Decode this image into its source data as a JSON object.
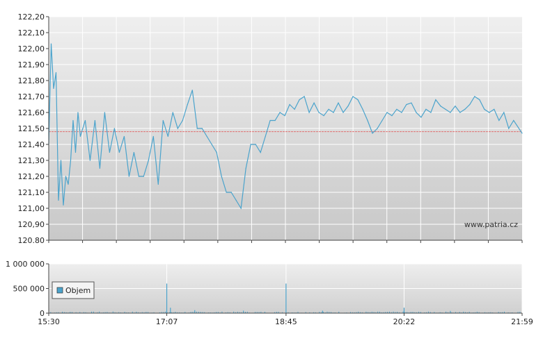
{
  "watermark": "www.patria.cz",
  "colors": {
    "line": "#4aa3cc",
    "reference": "#e07070",
    "volume": "#4aa3cc",
    "grid": "#ffffff",
    "bg_top": "#eeeeee",
    "bg_bottom": "#c9c9c9",
    "axis": "#444444"
  },
  "chart_data": [
    {
      "type": "line",
      "name": "price",
      "ylim": [
        120.8,
        122.2
      ],
      "yticks": [
        "122,20",
        "122,10",
        "122,00",
        "121,90",
        "121,80",
        "121,70",
        "121,60",
        "121,50",
        "121,40",
        "121,30",
        "121,20",
        "121,10",
        "121,00",
        "120,90",
        "120.80"
      ],
      "ytick_values": [
        122.2,
        122.1,
        122.0,
        121.9,
        121.8,
        121.7,
        121.6,
        121.5,
        121.4,
        121.3,
        121.2,
        121.1,
        121.0,
        120.9,
        120.8
      ],
      "x_minutes": [
        0,
        2,
        4,
        6,
        8,
        10,
        12,
        14,
        16,
        18,
        20,
        22,
        24,
        26,
        28,
        30,
        34,
        38,
        42,
        46,
        50,
        54,
        58,
        62,
        66,
        70,
        74,
        78,
        82,
        86,
        90,
        94,
        98,
        102,
        106,
        110,
        114,
        118,
        122,
        126,
        130,
        134,
        138,
        142,
        146,
        150,
        154,
        158,
        162,
        166,
        170,
        174,
        178,
        182,
        186,
        190,
        194,
        198,
        202,
        206,
        210,
        214,
        218,
        222,
        226,
        230,
        234,
        238,
        242,
        246,
        250,
        254,
        258,
        262,
        266,
        270,
        274,
        278,
        282,
        286,
        290,
        294,
        298,
        302,
        306,
        310,
        314,
        318,
        322,
        326,
        330,
        334,
        338,
        342,
        346,
        350,
        354,
        358,
        362,
        366,
        370,
        374,
        378,
        382,
        389
      ],
      "values": [
        121.4,
        122.03,
        121.75,
        121.85,
        121.05,
        121.3,
        121.02,
        121.2,
        121.15,
        121.3,
        121.55,
        121.35,
        121.6,
        121.45,
        121.5,
        121.55,
        121.3,
        121.55,
        121.25,
        121.6,
        121.35,
        121.5,
        121.35,
        121.45,
        121.2,
        121.35,
        121.2,
        121.2,
        121.3,
        121.45,
        121.15,
        121.55,
        121.45,
        121.6,
        121.5,
        121.55,
        121.65,
        121.74,
        121.5,
        121.5,
        121.45,
        121.4,
        121.35,
        121.2,
        121.1,
        121.1,
        121.05,
        121.0,
        121.25,
        121.4,
        121.4,
        121.35,
        121.45,
        121.55,
        121.55,
        121.6,
        121.58,
        121.65,
        121.62,
        121.68,
        121.7,
        121.6,
        121.66,
        121.6,
        121.58,
        121.62,
        121.6,
        121.66,
        121.6,
        121.64,
        121.7,
        121.68,
        121.62,
        121.55,
        121.47,
        121.5,
        121.55,
        121.6,
        121.58,
        121.62,
        121.6,
        121.65,
        121.66,
        121.6,
        121.57,
        121.62,
        121.6,
        121.68,
        121.64,
        121.62,
        121.6,
        121.64,
        121.6,
        121.62,
        121.65,
        121.7,
        121.68,
        121.62,
        121.6,
        121.62,
        121.55,
        121.6,
        121.5,
        121.55,
        121.47
      ],
      "reference_line": 121.48,
      "xticks": [
        "15:30",
        "17:07",
        "18:45",
        "20:22",
        "21:59"
      ],
      "xtick_minutes": [
        0,
        97,
        195,
        292,
        389
      ],
      "grid": true
    },
    {
      "type": "bar",
      "name": "volume",
      "legend": "Objem",
      "legend_position": "left",
      "ylim": [
        0,
        1000000
      ],
      "yticks": [
        "1 000 000",
        "500 000",
        "0"
      ],
      "ytick_values": [
        1000000,
        500000,
        0
      ],
      "spikes": [
        {
          "minute": 97,
          "value": 600000
        },
        {
          "minute": 100,
          "value": 110000
        },
        {
          "minute": 120,
          "value": 60000
        },
        {
          "minute": 160,
          "value": 50000
        },
        {
          "minute": 195,
          "value": 600000
        },
        {
          "minute": 225,
          "value": 50000
        },
        {
          "minute": 292,
          "value": 110000
        },
        {
          "minute": 330,
          "value": 45000
        }
      ],
      "baseline_level": 22000,
      "grid": true
    }
  ]
}
